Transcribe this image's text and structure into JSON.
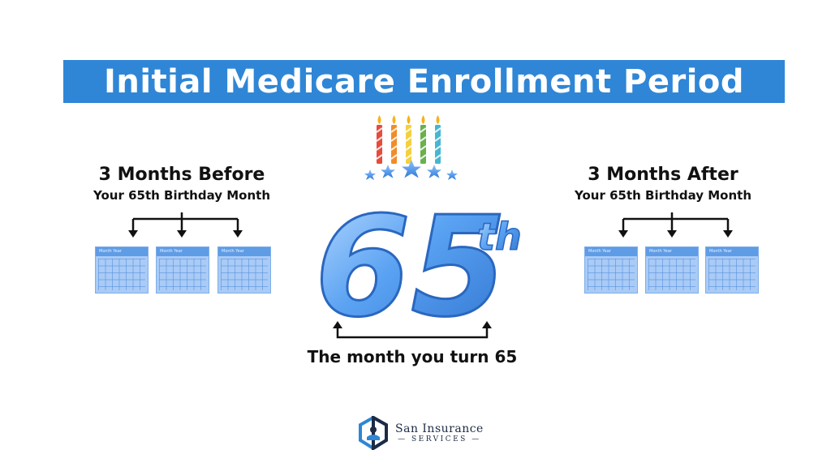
{
  "banner": {
    "title": "Initial Medicare Enrollment Period",
    "color": "#2f86d6"
  },
  "left": {
    "heading": "3 Months Before",
    "subheading": "Your 65th Birthday Month"
  },
  "right": {
    "heading": "3 Months After",
    "subheading": "Your 65th Birthday Month"
  },
  "center": {
    "number": "65",
    "suffix": "th",
    "caption": "The month you turn 65"
  },
  "calendar": {
    "label": "Month Year"
  },
  "candles": {
    "count": 5,
    "colors": [
      "#e74b3c",
      "#f28c28",
      "#f4d03f",
      "#6ab04c",
      "#45b7d1"
    ]
  },
  "logo": {
    "name": "San Insurance",
    "sub": "SERVICES"
  }
}
